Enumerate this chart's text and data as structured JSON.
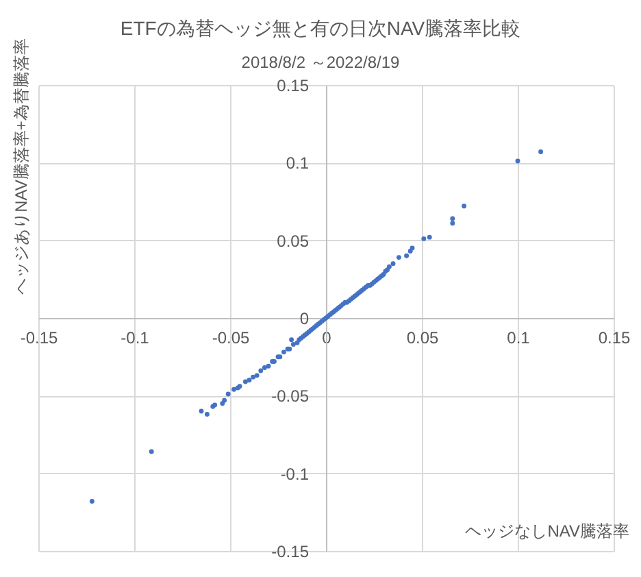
{
  "chart_data": {
    "type": "scatter",
    "title": "ETFの為替ヘッジ無と有の日次NAV騰落率比較",
    "subtitle": "2018/8/2 ～2022/8/19",
    "xlabel": "ヘッジなしNAV騰落率",
    "ylabel": "ヘッジありNAV騰落率+為替騰落率",
    "x": [
      -0.122,
      -0.091,
      -0.065,
      -0.062,
      -0.059,
      -0.058,
      -0.054,
      -0.053,
      -0.051,
      -0.048,
      -0.046,
      -0.045,
      -0.042,
      -0.04,
      -0.038,
      -0.036,
      -0.034,
      -0.032,
      -0.03,
      -0.028,
      -0.027,
      -0.025,
      -0.024,
      -0.022,
      -0.02,
      -0.019,
      -0.018,
      -0.017,
      -0.015,
      -0.014,
      -0.013,
      -0.012,
      -0.011,
      -0.01,
      -0.009,
      -0.008,
      -0.007,
      -0.006,
      -0.005,
      -0.004,
      -0.003,
      -0.002,
      -0.001,
      0,
      0.001,
      0.002,
      0.003,
      0.004,
      0.005,
      0.006,
      0.007,
      0.008,
      0.009,
      0.01,
      0.011,
      0.012,
      0.013,
      0.014,
      0.015,
      0.016,
      0.017,
      0.018,
      0.019,
      0.02,
      0.021,
      0.022,
      0.023,
      0.024,
      0.025,
      0.026,
      0.027,
      0.028,
      0.029,
      0.03,
      0.031,
      0.032,
      0.033,
      0.035,
      0.038,
      0.042,
      0.044,
      0.045,
      0.051,
      0.054,
      0.066,
      0.066,
      0.072,
      0.1,
      0.112
    ],
    "series": [
      {
        "color": "#4472c4",
        "values": [
          -0.118,
          -0.086,
          -0.06,
          -0.062,
          -0.057,
          -0.056,
          -0.055,
          -0.053,
          -0.049,
          -0.046,
          -0.045,
          -0.044,
          -0.041,
          -0.04,
          -0.038,
          -0.037,
          -0.034,
          -0.032,
          -0.031,
          -0.028,
          -0.028,
          -0.025,
          -0.025,
          -0.022,
          -0.02,
          -0.02,
          -0.014,
          -0.017,
          -0.016,
          -0.014,
          -0.013,
          -0.012,
          -0.011,
          -0.01,
          -0.009,
          -0.008,
          -0.007,
          -0.006,
          -0.005,
          -0.004,
          -0.003,
          -0.002,
          -0.001,
          0,
          0.001,
          0.002,
          0.003,
          0.004,
          0.005,
          0.006,
          0.007,
          0.008,
          0.009,
          0.01,
          0.01,
          0.011,
          0.012,
          0.013,
          0.014,
          0.015,
          0.016,
          0.017,
          0.018,
          0.019,
          0.02,
          0.021,
          0.021,
          0.022,
          0.023,
          0.024,
          0.025,
          0.026,
          0.027,
          0.028,
          0.03,
          0.031,
          0.033,
          0.035,
          0.039,
          0.04,
          0.043,
          0.045,
          0.051,
          0.052,
          0.061,
          0.064,
          0.072,
          0.101,
          0.107
        ]
      }
    ],
    "xlim": [
      -0.15,
      0.15
    ],
    "ylim": [
      -0.15,
      0.15
    ],
    "xticks": [
      -0.15,
      -0.1,
      -0.05,
      0,
      0.05,
      0.1,
      0.15
    ],
    "yticks": [
      -0.15,
      -0.1,
      -0.05,
      0,
      0.05,
      0.1,
      0.15
    ],
    "grid": true,
    "marker": "circle"
  }
}
